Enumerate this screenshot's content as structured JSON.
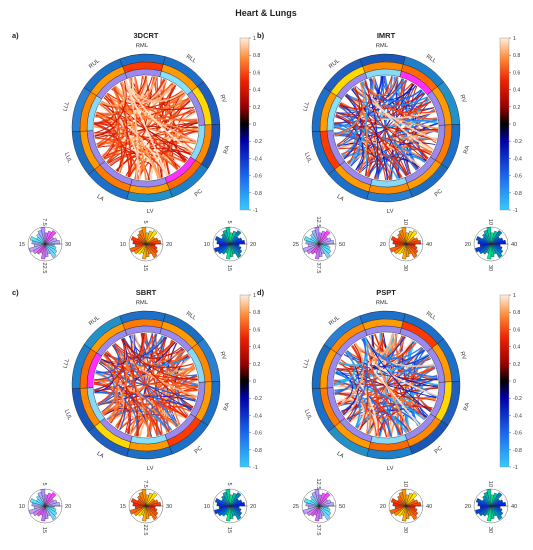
{
  "figure_title": "Heart & Lungs",
  "chart_data": [
    {
      "type": "chord",
      "panel_label": "a)",
      "title": "3DCRT",
      "nodes": [
        "RML",
        "RLL",
        "RV",
        "RA",
        "PC",
        "LV",
        "LA",
        "LUL",
        "LLL",
        "RUL"
      ],
      "colorbar": {
        "min": -1,
        "max": 1,
        "ticks": [
          "1",
          "0.8",
          "0.6",
          "0.4",
          "0.2",
          "0",
          "-0.2",
          "-0.4",
          "-0.6",
          "-0.8",
          "-1"
        ]
      },
      "legend_pies": [
        {
          "ticks": [
            "7.5",
            "30",
            "22.5",
            "15"
          ],
          "palette": "cool"
        },
        {
          "ticks": [
            "5",
            "20",
            "15",
            "10"
          ],
          "palette": "autumn"
        },
        {
          "ticks": [
            "5",
            "20",
            "15",
            "10"
          ],
          "palette": "winter"
        }
      ]
    },
    {
      "type": "chord",
      "panel_label": "b)",
      "title": "IMRT",
      "nodes": [
        "RML",
        "RLL",
        "RV",
        "RA",
        "PC",
        "LV",
        "LA",
        "LUL",
        "LLL",
        "RUL"
      ],
      "colorbar": {
        "min": -1,
        "max": 1,
        "ticks": [
          "1",
          "0.8",
          "0.6",
          "0.4",
          "0.2",
          "0",
          "-0.2",
          "-0.4",
          "-0.6",
          "-0.8",
          "-1"
        ]
      },
      "legend_pies": [
        {
          "ticks": [
            "12.5",
            "50",
            "37.5",
            "25"
          ],
          "palette": "cool"
        },
        {
          "ticks": [
            "10",
            "40",
            "30",
            "20"
          ],
          "palette": "autumn"
        },
        {
          "ticks": [
            "10",
            "40",
            "30",
            "20"
          ],
          "palette": "winter"
        }
      ]
    },
    {
      "type": "chord",
      "panel_label": "c)",
      "title": "SBRT",
      "nodes": [
        "RML",
        "RLL",
        "RV",
        "RA",
        "PC",
        "LV",
        "LA",
        "LUL",
        "LLL",
        "RUL"
      ],
      "colorbar": {
        "min": -1,
        "max": 1,
        "ticks": [
          "1",
          "0.8",
          "0.6",
          "0.4",
          "0.2",
          "0",
          "-0.2",
          "-0.4",
          "-0.6",
          "-0.8",
          "-1"
        ]
      },
      "legend_pies": [
        {
          "ticks": [
            "5",
            "20",
            "15",
            "10"
          ],
          "palette": "cool"
        },
        {
          "ticks": [
            "7.5",
            "30",
            "22.5",
            "15"
          ],
          "palette": "autumn"
        },
        {
          "ticks": [
            "5",
            "20",
            "15",
            "10"
          ],
          "palette": "winter"
        }
      ]
    },
    {
      "type": "chord",
      "panel_label": "d)",
      "title": "PSPT",
      "nodes": [
        "RML",
        "RLL",
        "RV",
        "RA",
        "PC",
        "LV",
        "LA",
        "LUL",
        "LLL",
        "RUL"
      ],
      "colorbar": {
        "min": -1,
        "max": 1,
        "ticks": [
          "1",
          "0.8",
          "0.6",
          "0.4",
          "0.2",
          "0",
          "-0.2",
          "-0.4",
          "-0.6",
          "-0.8",
          "-1"
        ]
      },
      "legend_pies": [
        {
          "ticks": [
            "12.5",
            "50",
            "37.5",
            "25"
          ],
          "palette": "cool"
        },
        {
          "ticks": [
            "10",
            "40",
            "30",
            "20"
          ],
          "palette": "autumn"
        },
        {
          "ticks": [
            "10",
            "40",
            "30",
            "20"
          ],
          "palette": "winter"
        }
      ]
    }
  ]
}
